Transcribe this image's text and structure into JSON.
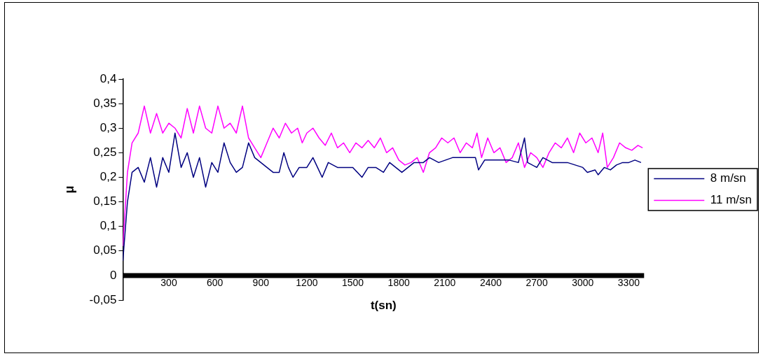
{
  "chart_data": {
    "type": "line",
    "xlabel": "t(sn)",
    "ylabel": "μ",
    "xlim": [
      0,
      3400
    ],
    "xticks": [
      300,
      600,
      900,
      1200,
      1500,
      1800,
      2100,
      2400,
      2700,
      3000,
      3300
    ],
    "ylim": [
      -0.05,
      0.4
    ],
    "yticks": [
      {
        "value": -0.05,
        "label": "-0,05"
      },
      {
        "value": 0,
        "label": "0"
      },
      {
        "value": 0.05,
        "label": "0,05"
      },
      {
        "value": 0.1,
        "label": "0,1"
      },
      {
        "value": 0.15,
        "label": "0,15"
      },
      {
        "value": 0.2,
        "label": "0,2"
      },
      {
        "value": 0.25,
        "label": "0,25"
      },
      {
        "value": 0.3,
        "label": "0,3"
      },
      {
        "value": 0.35,
        "label": "0,35"
      },
      {
        "value": 0.4,
        "label": "0,4"
      }
    ],
    "grid": false,
    "legend": "right",
    "marker": "none",
    "line_style": "solid",
    "series": [
      {
        "name": "8 m/sn",
        "color": "#000080",
        "x": [
          0,
          30,
          60,
          100,
          140,
          180,
          220,
          260,
          300,
          340,
          380,
          420,
          460,
          500,
          540,
          580,
          620,
          660,
          700,
          740,
          780,
          820,
          860,
          900,
          940,
          980,
          1020,
          1050,
          1080,
          1110,
          1150,
          1200,
          1240,
          1270,
          1300,
          1340,
          1400,
          1450,
          1500,
          1560,
          1600,
          1650,
          1700,
          1740,
          1780,
          1820,
          1860,
          1900,
          1960,
          2000,
          2060,
          2150,
          2250,
          2300,
          2320,
          2360,
          2450,
          2520,
          2580,
          2620,
          2640,
          2700,
          2740,
          2800,
          2850,
          2900,
          2950,
          3000,
          3030,
          3080,
          3100,
          3140,
          3180,
          3220,
          3260,
          3300,
          3340,
          3380
        ],
        "values": [
          0.03,
          0.15,
          0.21,
          0.22,
          0.19,
          0.24,
          0.18,
          0.24,
          0.21,
          0.29,
          0.22,
          0.25,
          0.2,
          0.24,
          0.18,
          0.23,
          0.21,
          0.27,
          0.23,
          0.21,
          0.22,
          0.27,
          0.24,
          0.23,
          0.22,
          0.21,
          0.21,
          0.25,
          0.22,
          0.2,
          0.22,
          0.22,
          0.24,
          0.22,
          0.2,
          0.23,
          0.22,
          0.22,
          0.22,
          0.2,
          0.22,
          0.22,
          0.21,
          0.23,
          0.22,
          0.21,
          0.22,
          0.23,
          0.23,
          0.24,
          0.23,
          0.24,
          0.24,
          0.24,
          0.215,
          0.235,
          0.235,
          0.235,
          0.23,
          0.28,
          0.23,
          0.22,
          0.24,
          0.23,
          0.23,
          0.23,
          0.225,
          0.22,
          0.21,
          0.215,
          0.205,
          0.22,
          0.215,
          0.225,
          0.23,
          0.23,
          0.235,
          0.23
        ]
      },
      {
        "name": "11 m/sn",
        "color": "#ff00ff",
        "x": [
          0,
          30,
          60,
          100,
          140,
          180,
          220,
          260,
          300,
          340,
          380,
          420,
          460,
          500,
          540,
          580,
          620,
          660,
          700,
          740,
          780,
          820,
          860,
          900,
          940,
          980,
          1020,
          1060,
          1100,
          1140,
          1170,
          1200,
          1240,
          1280,
          1320,
          1360,
          1400,
          1440,
          1480,
          1520,
          1560,
          1600,
          1640,
          1680,
          1720,
          1760,
          1800,
          1840,
          1880,
          1920,
          1960,
          2000,
          2040,
          2080,
          2120,
          2160,
          2200,
          2240,
          2280,
          2310,
          2340,
          2380,
          2420,
          2460,
          2500,
          2540,
          2580,
          2620,
          2660,
          2700,
          2740,
          2780,
          2820,
          2860,
          2900,
          2940,
          2980,
          3020,
          3060,
          3100,
          3130,
          3160,
          3200,
          3240,
          3280,
          3320,
          3360,
          3390
        ],
        "values": [
          0.06,
          0.21,
          0.27,
          0.29,
          0.345,
          0.29,
          0.33,
          0.29,
          0.31,
          0.3,
          0.28,
          0.34,
          0.29,
          0.345,
          0.3,
          0.29,
          0.345,
          0.3,
          0.31,
          0.29,
          0.345,
          0.28,
          0.26,
          0.24,
          0.27,
          0.3,
          0.28,
          0.31,
          0.29,
          0.3,
          0.27,
          0.29,
          0.3,
          0.28,
          0.265,
          0.29,
          0.26,
          0.27,
          0.25,
          0.27,
          0.26,
          0.275,
          0.26,
          0.28,
          0.25,
          0.26,
          0.235,
          0.225,
          0.23,
          0.24,
          0.21,
          0.25,
          0.26,
          0.28,
          0.27,
          0.28,
          0.25,
          0.27,
          0.26,
          0.29,
          0.24,
          0.28,
          0.25,
          0.26,
          0.23,
          0.24,
          0.27,
          0.22,
          0.25,
          0.24,
          0.22,
          0.25,
          0.27,
          0.26,
          0.28,
          0.25,
          0.29,
          0.27,
          0.28,
          0.25,
          0.29,
          0.22,
          0.24,
          0.27,
          0.26,
          0.255,
          0.265,
          0.26
        ]
      }
    ]
  }
}
